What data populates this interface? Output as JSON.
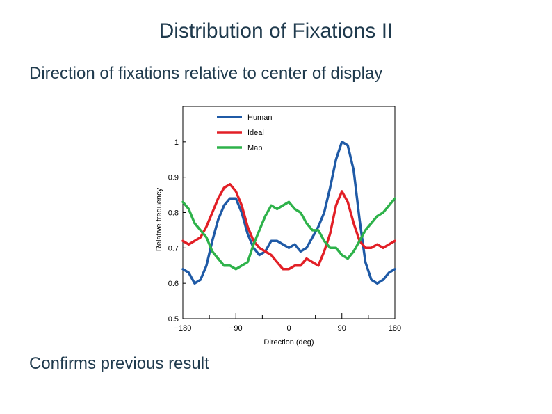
{
  "slide": {
    "title": "Distribution of Fixations II",
    "subtitle": "Direction of fixations relative to center of display",
    "footer": "Confirms previous result"
  },
  "chart_data": {
    "type": "line",
    "xlabel": "Direction (deg)",
    "ylabel": "Relative frequency",
    "xlim": [
      -180,
      180
    ],
    "ylim": [
      0.5,
      1.1
    ],
    "xticks_major": [
      -180,
      -90,
      0,
      90,
      180
    ],
    "xticks_minor": [
      -135,
      -45,
      45,
      135
    ],
    "yticks": [
      0.5,
      0.6,
      0.7,
      0.8,
      0.9,
      1
    ],
    "legend_position": "top-right",
    "x": [
      -180,
      -170,
      -160,
      -150,
      -140,
      -130,
      -120,
      -110,
      -100,
      -90,
      -80,
      -70,
      -60,
      -50,
      -40,
      -30,
      -20,
      -10,
      0,
      10,
      20,
      30,
      40,
      50,
      60,
      70,
      80,
      90,
      100,
      110,
      120,
      130,
      140,
      150,
      160,
      170,
      180
    ],
    "series": [
      {
        "name": "Human",
        "color": "#1f5aa6",
        "values": [
          0.64,
          0.63,
          0.6,
          0.61,
          0.65,
          0.72,
          0.78,
          0.82,
          0.84,
          0.84,
          0.8,
          0.74,
          0.7,
          0.68,
          0.69,
          0.72,
          0.72,
          0.71,
          0.7,
          0.71,
          0.69,
          0.7,
          0.73,
          0.76,
          0.8,
          0.87,
          0.95,
          1.0,
          0.99,
          0.92,
          0.78,
          0.66,
          0.61,
          0.6,
          0.61,
          0.63,
          0.64
        ]
      },
      {
        "name": "Ideal",
        "color": "#e21f26",
        "values": [
          0.72,
          0.71,
          0.72,
          0.73,
          0.76,
          0.8,
          0.84,
          0.87,
          0.88,
          0.86,
          0.82,
          0.76,
          0.72,
          0.7,
          0.69,
          0.68,
          0.66,
          0.64,
          0.64,
          0.65,
          0.65,
          0.67,
          0.66,
          0.65,
          0.69,
          0.74,
          0.82,
          0.86,
          0.83,
          0.77,
          0.72,
          0.7,
          0.7,
          0.71,
          0.7,
          0.71,
          0.72
        ]
      },
      {
        "name": "Map",
        "color": "#2eb24a",
        "values": [
          0.83,
          0.81,
          0.77,
          0.75,
          0.73,
          0.69,
          0.67,
          0.65,
          0.65,
          0.64,
          0.65,
          0.66,
          0.71,
          0.75,
          0.79,
          0.82,
          0.81,
          0.82,
          0.83,
          0.81,
          0.8,
          0.77,
          0.75,
          0.75,
          0.72,
          0.7,
          0.7,
          0.68,
          0.67,
          0.69,
          0.72,
          0.75,
          0.77,
          0.79,
          0.8,
          0.82,
          0.84
        ]
      }
    ]
  }
}
